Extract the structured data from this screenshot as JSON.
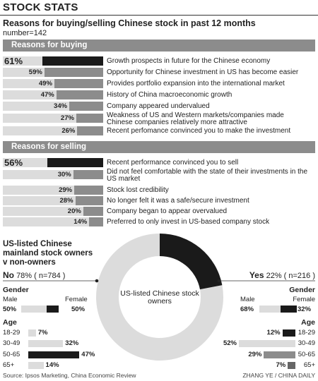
{
  "title": "STOCK STATS",
  "subtitle": "Reasons for buying/selling Chinese stock in past 12 months",
  "number": "number=142",
  "colors": {
    "top": "#1a1a1a",
    "bar": "#8c8c8c",
    "bg": "#dcdcdc",
    "band": "#8c8c8c",
    "donut_yes": "#1a1a1a",
    "donut_no": "#dcdcdc"
  },
  "chart_data": [
    {
      "type": "bar",
      "title": "Reasons for buying",
      "categories": [
        "Growth prospects in future for the Chinese economy",
        "Opportunity for Chinese investment in US has become easier",
        "Provides portfolio expansion into the international market",
        "History of China macroeconomic growth",
        "Company appeared undervalued",
        "Weakness of US and Western markets/companies made Chinese companies relatively more attractive",
        "Recent perfomance convinced you to make the investment"
      ],
      "values": [
        61,
        59,
        49,
        47,
        34,
        27,
        26
      ],
      "value_labels": [
        "61%",
        "59%",
        "49%",
        "47%",
        "34%",
        "27%",
        "26%"
      ]
    },
    {
      "type": "bar",
      "title": "Reasons for selling",
      "categories": [
        "Recent performance convinced you to sell",
        "Did not feel comfortable with the state of their investments in the US market",
        "Stock lost credibility",
        "No longer felt it was a safe/secure investment",
        "Company began to appear overvalued",
        "Preferred to only invest in US-based company stock"
      ],
      "values": [
        56,
        30,
        29,
        28,
        20,
        14
      ],
      "value_labels": [
        "56%",
        "30%",
        "29%",
        "28%",
        "20%",
        "14%"
      ]
    },
    {
      "type": "pie",
      "title": "US-listed Chinese mainland stock owners v non-owners",
      "center_label": "US-listed Chinese stock owners",
      "categories": [
        "No",
        "Yes"
      ],
      "values": [
        78,
        22
      ],
      "no": {
        "label": "No",
        "detail": "78% ( n=784 )",
        "gender": {
          "heading": "Gender",
          "male_label": "Male",
          "female_label": "Female",
          "male": 50,
          "female": 50,
          "male_text": "50%",
          "female_text": "50%"
        },
        "age": {
          "heading": "Age",
          "categories": [
            "18-29",
            "30-49",
            "50-65",
            "65+"
          ],
          "values": [
            7,
            32,
            47,
            14
          ],
          "value_labels": [
            "7%",
            "32%",
            "47%",
            "14%"
          ]
        }
      },
      "yes": {
        "label": "Yes",
        "detail": "22% ( n=216 )",
        "gender": {
          "heading": "Gender",
          "male_label": "Male",
          "female_label": "Female",
          "male": 68,
          "female": 32,
          "male_text": "68%",
          "female_text": "32%"
        },
        "age": {
          "heading": "Age",
          "categories": [
            "18-29",
            "30-49",
            "50-65",
            "65+"
          ],
          "values": [
            12,
            52,
            29,
            7
          ],
          "value_labels": [
            "12%",
            "52%",
            "29%",
            "7%"
          ]
        }
      }
    }
  ],
  "source": "Source: Ipsos Marketing, China Economic Review",
  "credit": "ZHANG YE / CHINA DAILY"
}
